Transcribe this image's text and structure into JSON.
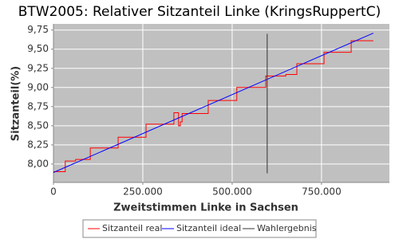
{
  "chart_data": {
    "type": "line",
    "title": "BTW2005: Relativer Sitzanteil Linke (KringsRuppertC)",
    "x_label": "Zweitstimmen Linke in Sachsen",
    "y_label": "Sitzanteil(%)",
    "xlim": [
      0,
      940000
    ],
    "ylim": [
      7.76,
      9.83
    ],
    "xticks": [
      0,
      {
        "value": 250000,
        "label": "250.000"
      },
      {
        "value": 500000,
        "label": "500.000"
      },
      {
        "value": 750000,
        "label": "750.000"
      }
    ],
    "yticks": [
      {
        "value": 8.0,
        "label": "8,00"
      },
      {
        "value": 8.25,
        "label": "8,25"
      },
      {
        "value": 8.5,
        "label": "8,50"
      },
      {
        "value": 8.75,
        "label": "8,75"
      },
      {
        "value": 9.0,
        "label": "9,00"
      },
      {
        "value": 9.25,
        "label": "9,25"
      },
      {
        "value": 9.5,
        "label": "9,50"
      },
      {
        "value": 9.75,
        "label": "9,75"
      }
    ],
    "grid": true,
    "legend": "bottom",
    "series": [
      {
        "name": "Sitzanteil real",
        "color": "#ff0000",
        "x": [
          0,
          33000,
          33000,
          62000,
          62000,
          103000,
          103000,
          181000,
          181000,
          259000,
          259000,
          337000,
          337000,
          350000,
          350000,
          355000,
          355000,
          360000,
          360000,
          433000,
          433000,
          513000,
          513000,
          594000,
          594000,
          650000,
          650000,
          681000,
          681000,
          757000,
          757000,
          833000,
          833000,
          895000
        ],
        "values": [
          7.9,
          7.9,
          8.04,
          8.04,
          8.06,
          8.06,
          8.21,
          8.21,
          8.35,
          8.35,
          8.52,
          8.52,
          8.67,
          8.67,
          8.5,
          8.5,
          8.55,
          8.55,
          8.66,
          8.66,
          8.83,
          8.83,
          9.0,
          9.0,
          9.15,
          9.15,
          9.17,
          9.17,
          9.31,
          9.31,
          9.46,
          9.46,
          9.61,
          9.61
        ]
      },
      {
        "name": "Sitzanteil ideal",
        "color": "#0000ff",
        "x": [
          0,
          895000
        ],
        "values": [
          7.89,
          9.71
        ]
      },
      {
        "name": "Wahlergebnis",
        "color": "#333333",
        "x": [
          598000,
          598000
        ],
        "values": [
          7.88,
          9.7
        ]
      }
    ]
  }
}
